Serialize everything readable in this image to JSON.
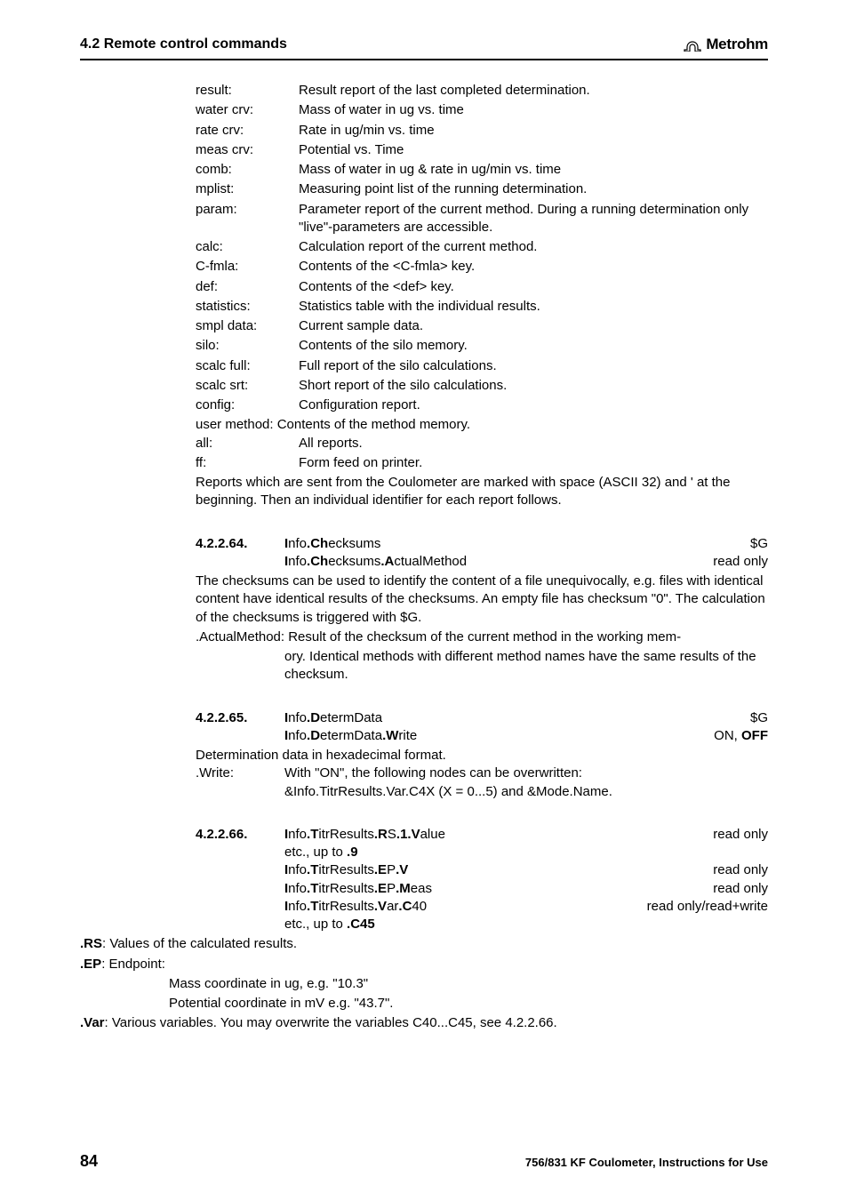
{
  "header": {
    "title": "4.2 Remote control commands",
    "logo_text": "Metrohm"
  },
  "defs": [
    {
      "term": "result:",
      "desc": "Result report of the last completed determination."
    },
    {
      "term": "water crv:",
      "desc": "Mass of water in ug vs. time"
    },
    {
      "term": "rate crv:",
      "desc": "Rate in ug/min vs. time"
    },
    {
      "term": "meas crv:",
      "desc": "Potential vs. Time"
    },
    {
      "term": "comb:",
      "desc": "Mass of water in ug & rate in ug/min vs. time"
    },
    {
      "term": "mplist:",
      "desc": "Measuring point list of the running determination."
    },
    {
      "term": "param:",
      "desc": "Parameter report of the current method. During a running determination only \"live\"-parameters are accessible."
    },
    {
      "term": "calc:",
      "desc": "Calculation report of the current method."
    },
    {
      "term": "C-fmla:",
      "desc": "Contents of the <C-fmla> key."
    },
    {
      "term": "def:",
      "desc": "Contents of the <def> key."
    },
    {
      "term": "statistics:",
      "desc": "Statistics table with the individual results."
    },
    {
      "term": "smpl data:",
      "desc": "Current sample data."
    },
    {
      "term": "silo:",
      "desc": "Contents of the silo memory."
    },
    {
      "term": "scalc full:",
      "desc": "Full report of the silo calculations."
    },
    {
      "term": "scalc srt:",
      "desc": "Short report of the silo calculations."
    },
    {
      "term": "config:",
      "desc": "Configuration report."
    }
  ],
  "singleLines": {
    "user_method": "user method: Contents of the method memory.",
    "all_label": "all:",
    "all_desc": "All reports.",
    "ff_label": "ff:",
    "ff_desc": "Form feed on printer.",
    "reports_note": "Reports which are sent from the Coulometer are marked with space (ASCII 32) and ' at the beginning. Then an individual identifier for each report follows."
  },
  "sec64": {
    "num": "4.2.2.64.",
    "l1_pre": "I",
    "l1_b1": "nfo",
    "l1_mid": ".Ch",
    "l1_b2": "ecksums",
    "l1_right": "$G",
    "l2_pre": "I",
    "l2_b1": "nfo",
    "l2_mid1": ".Ch",
    "l2_b2": "ecksums",
    "l2_mid2": ".A",
    "l2_b3": "ctualMethod",
    "l2_right": "read only",
    "para1": "The checksums can be used to identify the content of a file unequivocally, e.g. files with identical content have identical results of the checksums. An empty file has checksum \"0\". The calculation of the checksums is triggered with $G.",
    "para2_l1": ".ActualMethod: Result of the checksum of the current method in the working mem-",
    "para2_l2": "ory. Identical methods with different method names have the same results of the checksum."
  },
  "sec65": {
    "num": "4.2.2.65.",
    "l1_pre": "I",
    "l1_b1": "nfo",
    "l1_mid": ".D",
    "l1_b2": "etermData",
    "l1_right": "$G",
    "l2_pre": "I",
    "l2_b1": "nfo",
    "l2_mid1": ".D",
    "l2_b2": "etermData",
    "l2_mid2": ".W",
    "l2_b3": "rite",
    "l2_right_pre": "ON, ",
    "l2_right_b": "OFF",
    "det_line": "Determination data in hexadecimal format.",
    "write_label": ".Write:",
    "write_l1": "With \"ON\", the following nodes can be overwritten:",
    "write_l2": "&Info.TitrResults.Var.C4X (X = 0...5) and &Mode.Name."
  },
  "sec66": {
    "num": "4.2.2.66.",
    "l1_parts": [
      "I",
      "nfo",
      ".T",
      "itrResults",
      ".R",
      "S",
      ".1.V",
      "alue"
    ],
    "l1_right": "read only",
    "etc1": "etc., up to ",
    "etc1b": ".9",
    "l2_parts": [
      "I",
      "nfo",
      ".T",
      "itrResults",
      ".E",
      "P",
      ".V"
    ],
    "l2_right": "read only",
    "l3_parts": [
      "I",
      "nfo",
      ".T",
      "itrResults",
      ".E",
      "P",
      ".M",
      "eas"
    ],
    "l3_right": "read only",
    "l4_parts": [
      "I",
      "nfo",
      ".T",
      "itrResults",
      ".V",
      "ar",
      ".C",
      "40"
    ],
    "l4_right": "read only/read+write",
    "etc2": "etc., up to ",
    "etc2b": ".C45",
    "rs_b": ".RS",
    "rs_rest": ": Values of the calculated results.",
    "ep_b": ".EP",
    "ep_rest": ": Endpoint:",
    "mass": "Mass coordinate in ug, e.g. \"10.3\"",
    "pot": "Potential coordinate in mV e.g. \"43.7\".",
    "var_b": ".Var",
    "var_rest": ": Various variables. You may overwrite the variables C40...C45, see 4.2.2.66."
  },
  "footer": {
    "page": "84",
    "text": "756/831 KF Coulometer, Instructions for Use"
  }
}
